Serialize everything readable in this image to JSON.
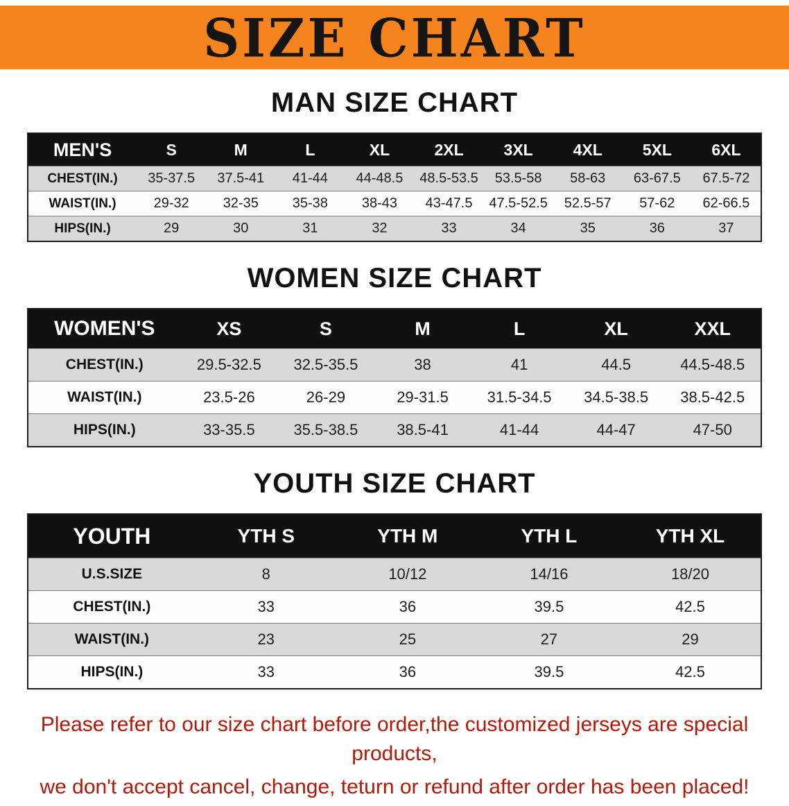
{
  "banner": {
    "title": "SIZE CHART",
    "bg_color": "#f5831e",
    "text_color": "#151515"
  },
  "sections": [
    {
      "heading": "MAN SIZE CHART",
      "table": {
        "header": [
          "MEN'S",
          "S",
          "M",
          "L",
          "XL",
          "2XL",
          "3XL",
          "4XL",
          "5XL",
          "6XL"
        ],
        "rows": [
          [
            "CHEST(IN.)",
            "35-37.5",
            "37.5-41",
            "41-44",
            "44-48.5",
            "48.5-53.5",
            "53.5-58",
            "58-63",
            "63-67.5",
            "67.5-72"
          ],
          [
            "WAIST(IN.)",
            "29-32",
            "32-35",
            "35-38",
            "38-43",
            "43-47.5",
            "47.5-52.5",
            "52.5-57",
            "57-62",
            "62-66.5"
          ],
          [
            "HIPS(IN.)",
            "29",
            "30",
            "31",
            "32",
            "33",
            "34",
            "35",
            "36",
            "37"
          ]
        ]
      }
    },
    {
      "heading": "WOMEN SIZE CHART",
      "table": {
        "header": [
          "WOMEN'S",
          "XS",
          "S",
          "M",
          "L",
          "XL",
          "XXL"
        ],
        "rows": [
          [
            "CHEST(IN.)",
            "29.5-32.5",
            "32.5-35.5",
            "38",
            "41",
            "44.5",
            "44.5-48.5"
          ],
          [
            "WAIST(IN.)",
            "23.5-26",
            "26-29",
            "29-31.5",
            "31.5-34.5",
            "34.5-38.5",
            "38.5-42.5"
          ],
          [
            "HIPS(IN.)",
            "33-35.5",
            "35.5-38.5",
            "38.5-41",
            "41-44",
            "44-47",
            "47-50"
          ]
        ]
      }
    },
    {
      "heading": "YOUTH SIZE CHART",
      "table": {
        "header": [
          "YOUTH",
          "YTH S",
          "YTH M",
          "YTH L",
          "YTH XL"
        ],
        "rows": [
          [
            "U.S.SIZE",
            "8",
            "10/12",
            "14/16",
            "18/20"
          ],
          [
            "CHEST(IN.)",
            "33",
            "36",
            "39.5",
            "42.5"
          ],
          [
            "WAIST(IN.)",
            "23",
            "25",
            "27",
            "29"
          ],
          [
            "HIPS(IN.)",
            "33",
            "36",
            "39.5",
            "42.5"
          ]
        ]
      }
    }
  ],
  "disclaimer": {
    "line1": "Please refer to our size chart before order,the customized jerseys are special products,",
    "line2": "we don't accept cancel, change, teturn or refund after order has been placed!",
    "color": "#b21807"
  }
}
